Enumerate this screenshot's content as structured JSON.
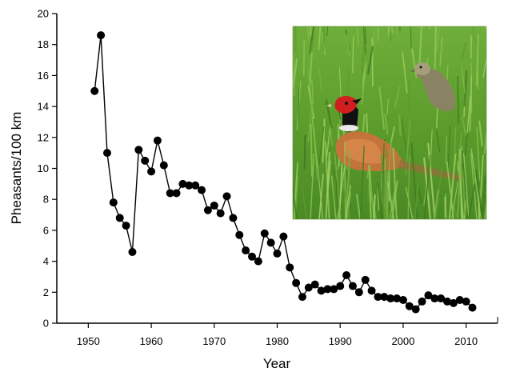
{
  "chart_data": {
    "type": "scatter",
    "xlabel": "Year",
    "ylabel": "Pheasants/100 km",
    "xlim": [
      1945,
      2015
    ],
    "ylim": [
      0,
      20
    ],
    "xticks": [
      "1950",
      "1960",
      "1970",
      "1980",
      "1990",
      "2000",
      "2010"
    ],
    "yticks": [
      "0",
      "2",
      "4",
      "6",
      "8",
      "10",
      "12",
      "14",
      "16",
      "18",
      "20"
    ],
    "grid": false,
    "legend": "none",
    "marker_color": "#000000",
    "line_color": "#000000",
    "series": [
      {
        "x": [
          1951,
          1952,
          1953,
          1954,
          1955,
          1956,
          1957,
          1958,
          1959,
          1960,
          1961,
          1962,
          1963,
          1964,
          1965,
          1966,
          1967,
          1968,
          1969,
          1970,
          1971,
          1972,
          1973,
          1974,
          1975,
          1976,
          1977,
          1978,
          1979,
          1980,
          1981,
          1982,
          1983,
          1984,
          1985,
          1986,
          1987,
          1988,
          1989,
          1990,
          1991,
          1992,
          1993,
          1994,
          1995,
          1996,
          1997,
          1998,
          1999,
          2000,
          2001,
          2002,
          2003,
          2004,
          2005,
          2006,
          2007,
          2008,
          2009,
          2010,
          2011
        ],
        "values": [
          15.0,
          18.6,
          11.0,
          7.8,
          6.8,
          6.3,
          4.6,
          11.2,
          10.5,
          9.8,
          11.8,
          10.2,
          8.4,
          8.4,
          9.0,
          8.9,
          8.9,
          8.6,
          7.3,
          7.6,
          7.1,
          8.2,
          6.8,
          5.7,
          4.7,
          4.3,
          4.0,
          5.8,
          5.2,
          4.5,
          5.6,
          3.6,
          2.6,
          1.7,
          2.3,
          2.5,
          2.1,
          2.2,
          2.2,
          2.4,
          3.1,
          2.4,
          2.0,
          2.8,
          2.1,
          1.7,
          1.7,
          1.6,
          1.6,
          1.5,
          1.1,
          0.9,
          1.4,
          1.8,
          1.6,
          1.6,
          1.4,
          1.3,
          1.5,
          1.4,
          1.0
        ]
      }
    ]
  },
  "photo": {
    "icon": "pheasant-photo"
  }
}
